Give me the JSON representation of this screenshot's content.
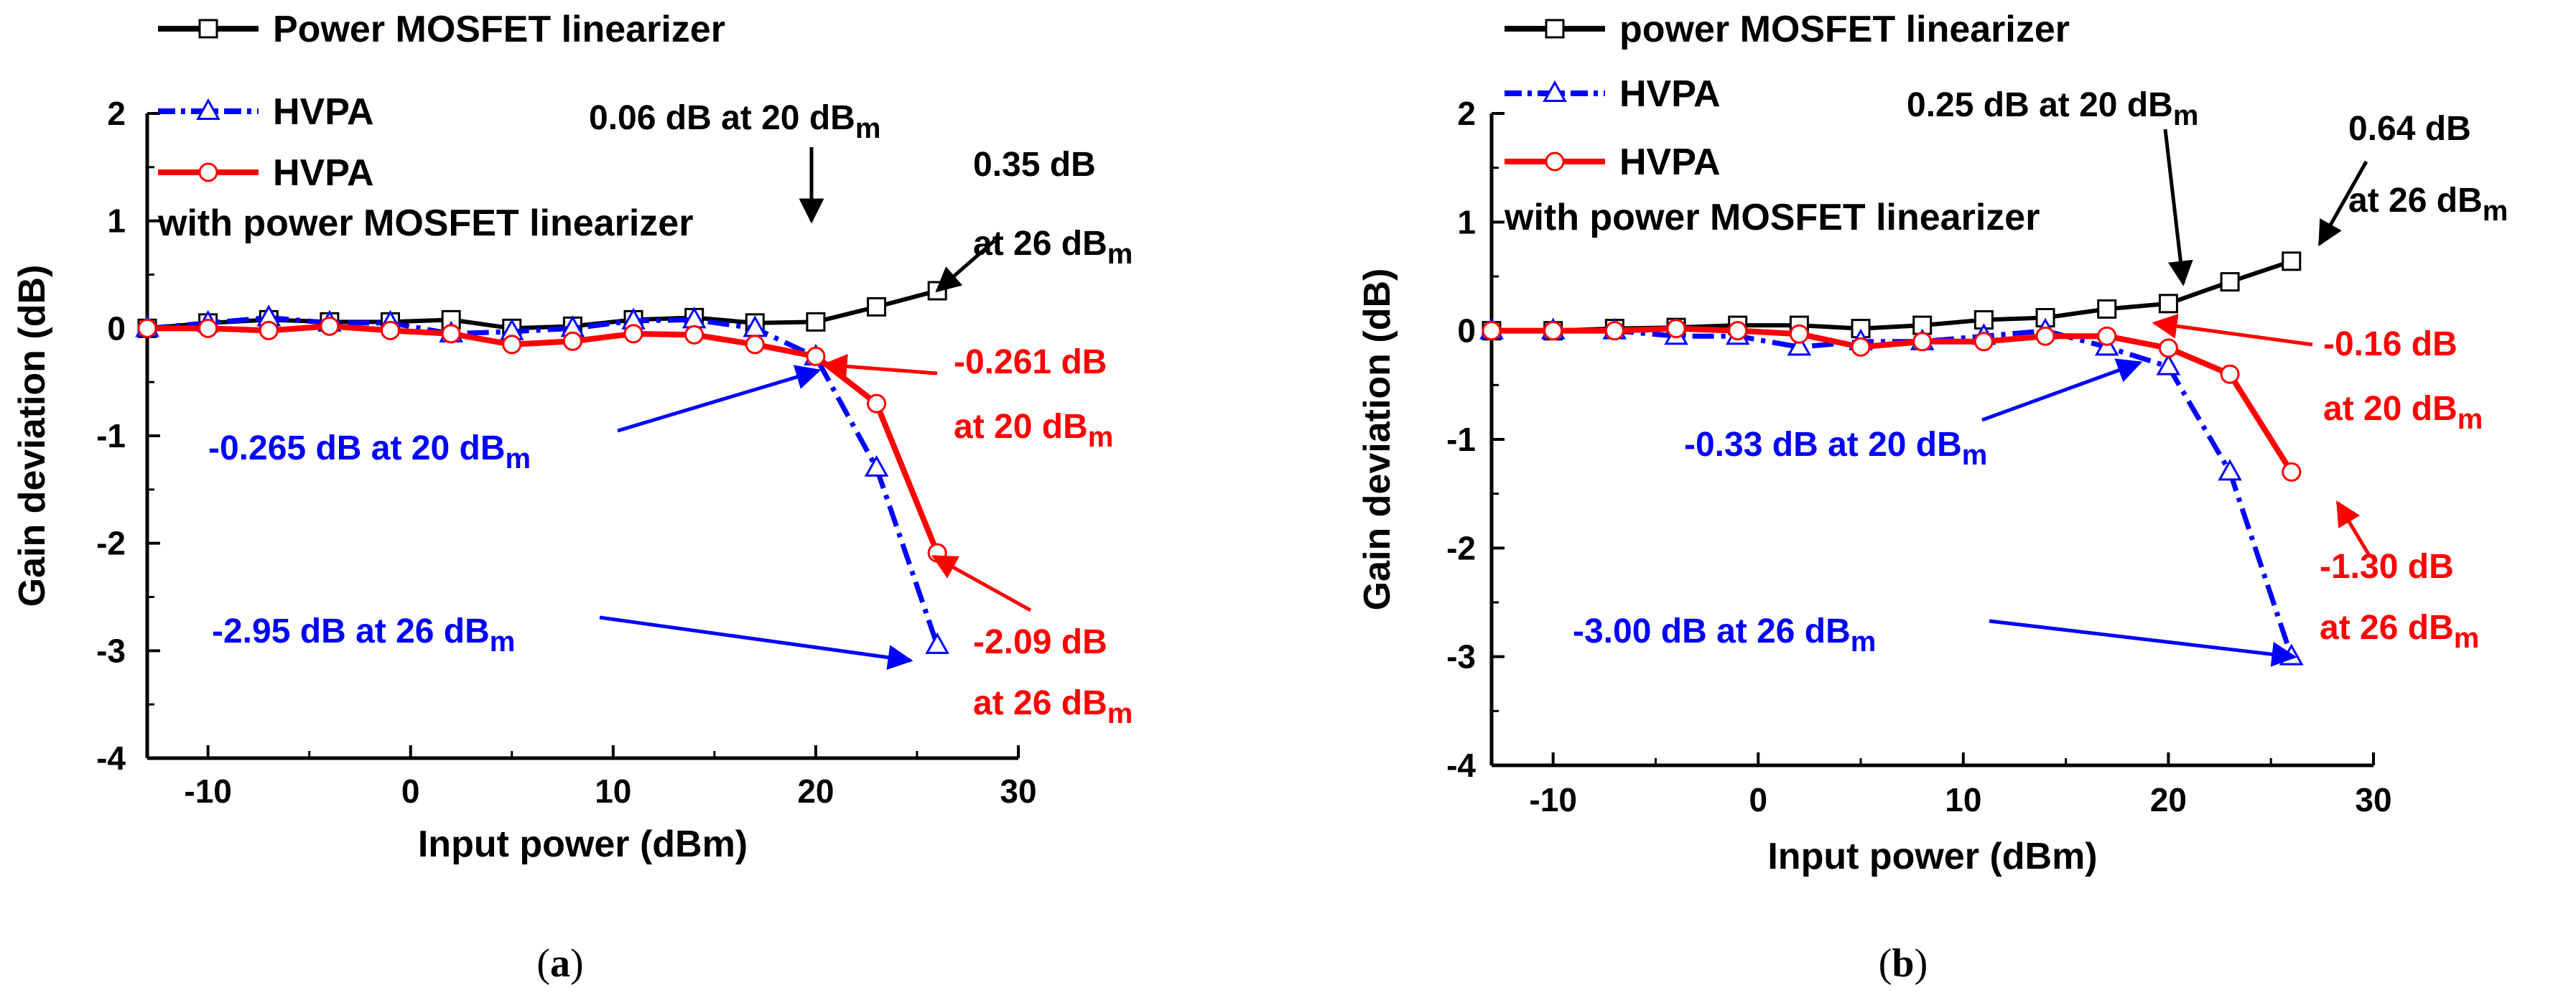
{
  "chart_data": [
    {
      "type": "line",
      "panel_label": "(a)",
      "panel_label_parts": [
        "(",
        "a",
        ")"
      ],
      "xlabel": "Input power (dBm)",
      "ylabel": "Gain deviation (dB)",
      "xlim": [
        -13,
        30
      ],
      "ylim": [
        -4,
        2
      ],
      "xticks": [
        -10,
        0,
        10,
        20,
        30
      ],
      "yticks": [
        -4,
        -3,
        -2,
        -1,
        0,
        1,
        2
      ],
      "x": [
        -13,
        -10,
        -7,
        -4,
        -1,
        2,
        5,
        8,
        11,
        14,
        17,
        20,
        23,
        26
      ],
      "series": [
        {
          "name": "Power MOSFET linearizer",
          "marker": "square",
          "color": "#000000",
          "style": "solid",
          "values": [
            0.0,
            0.05,
            0.08,
            0.06,
            0.06,
            0.08,
            0.0,
            0.02,
            0.08,
            0.1,
            0.05,
            0.06,
            0.2,
            0.35
          ]
        },
        {
          "name": "HVPA",
          "marker": "triangle",
          "color": "#0000ff",
          "style": "dashdot",
          "values": [
            0.0,
            0.05,
            0.1,
            0.05,
            0.05,
            -0.05,
            -0.03,
            0.0,
            0.07,
            0.08,
            0.0,
            -0.265,
            -1.3,
            -2.95
          ]
        },
        {
          "name": "HVPA",
          "name_line2": "with power MOSFET linearizer",
          "marker": "circle",
          "color": "#ff0000",
          "style": "solid",
          "values": [
            0.0,
            0.0,
            -0.02,
            0.02,
            -0.02,
            -0.05,
            -0.15,
            -0.12,
            -0.05,
            -0.06,
            -0.15,
            -0.261,
            -0.7,
            -2.09
          ]
        }
      ],
      "annotations": [
        {
          "text": "0.06 dB at 20 dB",
          "sub": "m",
          "color": "#000000"
        },
        {
          "line1": "0.35 dB",
          "line2": "at 26 dB",
          "sub": "m",
          "color": "#000000"
        },
        {
          "line1": "-0.261 dB",
          "line2": "at 20 dB",
          "sub": "m",
          "color": "#ff0000"
        },
        {
          "text": "-0.265 dB at 20 dB",
          "sub": "m",
          "color": "#0000ff"
        },
        {
          "line1": "-2.09 dB",
          "line2": "at 26 dB",
          "sub": "m",
          "color": "#ff0000"
        },
        {
          "text": "-2.95 dB at 26 dB",
          "sub": "m",
          "color": "#0000ff"
        }
      ]
    },
    {
      "type": "line",
      "panel_label": "(b)",
      "panel_label_parts": [
        "(",
        "b",
        ")"
      ],
      "xlabel": "Input power (dBm)",
      "ylabel": "Gain deviation (dB)",
      "xlim": [
        -13,
        30
      ],
      "ylim": [
        -4,
        2
      ],
      "xticks": [
        -10,
        0,
        10,
        20,
        30
      ],
      "yticks": [
        -4,
        -3,
        -2,
        -1,
        0,
        1,
        2
      ],
      "x": [
        -13,
        -10,
        -7,
        -4,
        -1,
        2,
        5,
        8,
        11,
        14,
        17,
        20,
        23,
        26
      ],
      "series": [
        {
          "name": "power MOSFET linearizer",
          "marker": "square",
          "color": "#000000",
          "style": "solid",
          "values": [
            0.0,
            0.0,
            0.02,
            0.03,
            0.05,
            0.05,
            0.02,
            0.05,
            0.1,
            0.12,
            0.2,
            0.25,
            0.45,
            0.64
          ]
        },
        {
          "name": "HVPA",
          "marker": "triangle",
          "color": "#0000ff",
          "style": "dashdot",
          "values": [
            0.0,
            0.0,
            0.0,
            -0.05,
            -0.05,
            -0.15,
            -0.1,
            -0.1,
            -0.05,
            0.0,
            -0.15,
            -0.33,
            -1.3,
            -3.0
          ]
        },
        {
          "name": "HVPA",
          "name_line2": "with power MOSFET linearizer",
          "marker": "circle",
          "color": "#ff0000",
          "style": "solid",
          "values": [
            0.0,
            0.0,
            0.0,
            0.02,
            0.0,
            -0.03,
            -0.15,
            -0.1,
            -0.1,
            -0.05,
            -0.05,
            -0.16,
            -0.4,
            -1.3
          ]
        }
      ],
      "annotations": [
        {
          "text": "0.25 dB at 20 dB",
          "sub": "m",
          "color": "#000000"
        },
        {
          "line1": "0.64 dB",
          "line2": "at 26 dB",
          "sub": "m",
          "color": "#000000"
        },
        {
          "line1": "-0.16 dB",
          "line2": "at 20 dB",
          "sub": "m",
          "color": "#ff0000"
        },
        {
          "text": "-0.33 dB at 20 dB",
          "sub": "m",
          "color": "#0000ff"
        },
        {
          "line1": "-1.30 dB",
          "line2": "at 26 dB",
          "sub": "m",
          "color": "#ff0000"
        },
        {
          "text": "-3.00 dB at 26 dB",
          "sub": "m",
          "color": "#0000ff"
        }
      ]
    }
  ]
}
